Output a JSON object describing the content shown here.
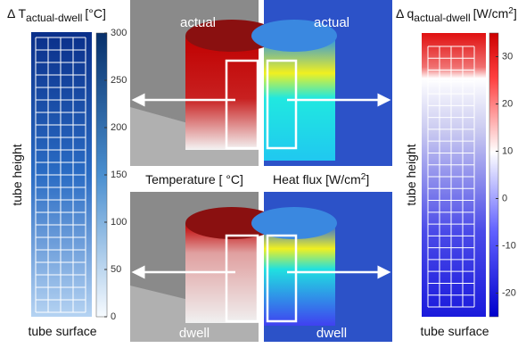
{
  "left_panel": {
    "title": "Δ T",
    "title_sub": "actual-dwell",
    "unit": "[°C]",
    "y_label": "tube height",
    "x_label": "tube surface",
    "colorbar": {
      "lim": [
        0,
        300
      ],
      "ticks": [
        0,
        50,
        100,
        150,
        200,
        250,
        300
      ]
    }
  },
  "right_panel": {
    "title": "Δ q",
    "title_sub": "actual-dwell",
    "unit_base": "[W/cm",
    "unit_sup": "2",
    "unit_end": "]",
    "y_label": "tube height",
    "x_label": "tube surface",
    "colorbar": {
      "lim": [
        -25,
        35
      ],
      "ticks": [
        -20,
        -10,
        0,
        10,
        20,
        30
      ]
    }
  },
  "center": {
    "top_left": "actual",
    "top_right": "actual",
    "bottom_left": "dwell",
    "bottom_right": "dwell",
    "label_left": "Temperature [ °C]",
    "label_right_base": "Heat flux [W/cm",
    "label_right_sup": "2",
    "label_right_end": "]"
  }
}
